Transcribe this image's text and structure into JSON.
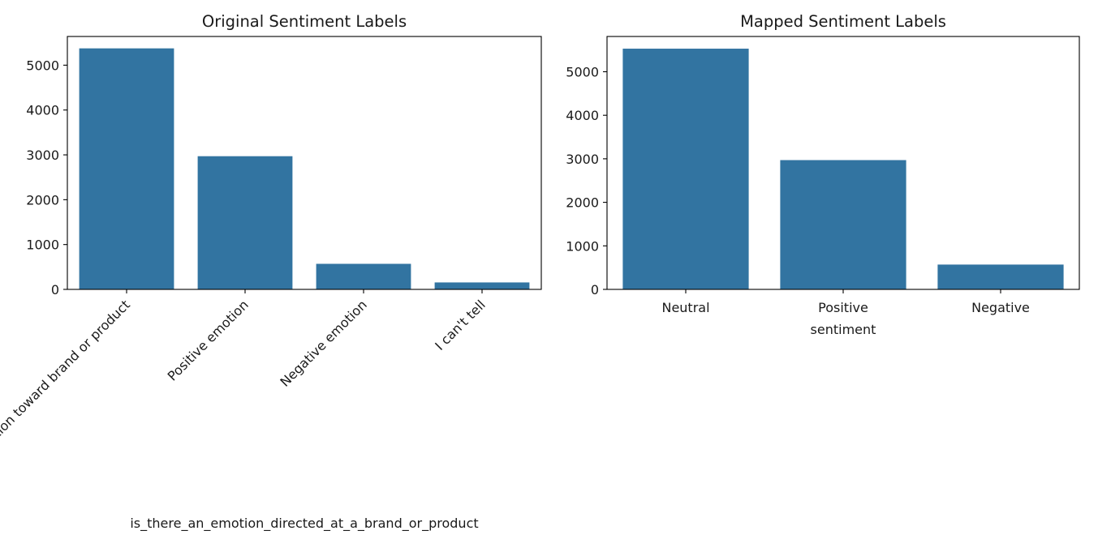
{
  "chart_data": [
    {
      "type": "bar",
      "title": "Original Sentiment Labels",
      "xlabel": "is_there_an_emotion_directed_at_a_brand_or_product",
      "ylabel": "",
      "categories": [
        "No emotion toward brand or product",
        "Positive emotion",
        "Negative emotion",
        "I can't tell"
      ],
      "values": [
        5375,
        2970,
        570,
        155
      ],
      "ylim": [
        0,
        5640
      ],
      "yticks": [
        0,
        1000,
        2000,
        3000,
        4000,
        5000
      ],
      "color": "#3274a1",
      "grid": false
    },
    {
      "type": "bar",
      "title": "Mapped Sentiment Labels",
      "xlabel": "sentiment",
      "ylabel": "",
      "categories": [
        "Neutral",
        "Positive",
        "Negative"
      ],
      "values": [
        5530,
        2970,
        570
      ],
      "ylim": [
        0,
        5810
      ],
      "yticks": [
        0,
        1000,
        2000,
        3000,
        4000,
        5000
      ],
      "color": "#3274a1",
      "grid": false
    }
  ]
}
